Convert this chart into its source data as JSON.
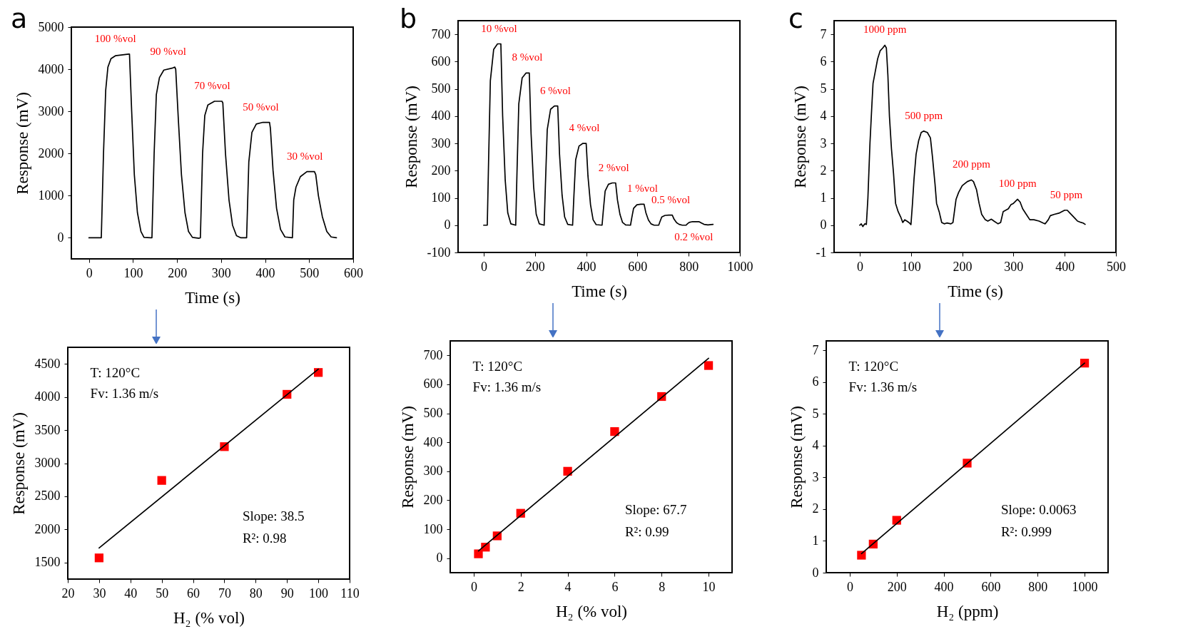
{
  "chart_data": [
    {
      "type": "line",
      "title": "a",
      "xlabel": "Time (s)",
      "ylabel": "Response (mV)",
      "color": "#000000",
      "xlim": [
        -40,
        600
      ],
      "xticks": [
        0,
        100,
        200,
        300,
        400,
        500,
        600
      ],
      "ylim": [
        -500,
        5000
      ],
      "yticks": [
        0,
        1000,
        2000,
        3000,
        4000,
        5000
      ],
      "x": [
        0,
        28,
        33,
        38,
        43,
        50,
        60,
        90,
        92,
        97,
        103,
        110,
        118,
        125,
        140,
        143,
        148,
        153,
        160,
        170,
        190,
        195,
        197,
        203,
        210,
        218,
        226,
        235,
        250,
        253,
        258,
        263,
        270,
        285,
        302,
        304,
        310,
        318,
        326,
        335,
        345,
        358,
        363,
        370,
        380,
        395,
        410,
        412,
        418,
        426,
        435,
        445,
        462,
        465,
        470,
        480,
        495,
        512,
        515,
        521,
        530,
        540,
        550,
        562
      ],
      "values": [
        0,
        0,
        2000,
        3500,
        4050,
        4250,
        4320,
        4360,
        4360,
        3000,
        1500,
        600,
        150,
        10,
        0,
        0,
        2000,
        3400,
        3800,
        3980,
        4030,
        4050,
        4000,
        2800,
        1500,
        600,
        150,
        10,
        -10,
        0,
        2000,
        2900,
        3150,
        3240,
        3240,
        3200,
        2000,
        900,
        300,
        50,
        0,
        0,
        1800,
        2500,
        2700,
        2740,
        2740,
        2600,
        1600,
        700,
        200,
        20,
        0,
        900,
        1200,
        1450,
        1570,
        1570,
        1500,
        1000,
        500,
        150,
        20,
        0
      ],
      "annotations": [
        {
          "text": "100 %vol",
          "x": 60,
          "y": 4360
        },
        {
          "text": "90 %vol",
          "x": 180,
          "y": 4050
        },
        {
          "text": "70 %vol",
          "x": 280,
          "y": 3240
        },
        {
          "text": "50 %vol",
          "x": 390,
          "y": 2740
        },
        {
          "text": "30 %vol",
          "x": 490,
          "y": 1570
        }
      ]
    },
    {
      "type": "line",
      "title": "b",
      "xlabel": "Time (s)",
      "ylabel": "Response (mV)",
      "color": "#000000",
      "xlim": [
        -100,
        1000
      ],
      "xticks": [
        0,
        200,
        400,
        600,
        800,
        1000
      ],
      "ylim": [
        -100,
        750
      ],
      "yticks": [
        -100,
        0,
        100,
        200,
        300,
        400,
        500,
        600,
        700
      ],
      "x": [
        0,
        14,
        19,
        26,
        39,
        54,
        67,
        74,
        84,
        94,
        106,
        125,
        130,
        137,
        150,
        165,
        178,
        185,
        195,
        205,
        217,
        236,
        241,
        248,
        261,
        276,
        289,
        296,
        306,
        316,
        328,
        347,
        352,
        359,
        372,
        387,
        400,
        407,
        417,
        427,
        439,
        462,
        467,
        474,
        487,
        502,
        515,
        522,
        532,
        542,
        554,
        573,
        578,
        585,
        598,
        613,
        626,
        633,
        643,
        653,
        665,
        683,
        688,
        695,
        708,
        723,
        736,
        743,
        753,
        763,
        775,
        790,
        795,
        802,
        815,
        840,
        850,
        860,
        875,
        895
      ],
      "values": [
        0,
        0,
        230,
        530,
        645,
        665,
        665,
        400,
        165,
        45,
        5,
        0,
        195,
        445,
        540,
        558,
        558,
        335,
        140,
        40,
        5,
        0,
        150,
        350,
        425,
        437,
        437,
        260,
        110,
        30,
        3,
        0,
        105,
        240,
        290,
        300,
        300,
        180,
        75,
        20,
        2,
        0,
        55,
        125,
        150,
        155,
        155,
        93,
        39,
        10,
        1,
        0,
        27,
        62,
        75,
        77,
        77,
        46,
        19,
        5,
        0,
        0,
        13,
        30,
        36,
        37,
        37,
        22,
        9,
        3,
        0,
        0,
        5,
        10,
        13,
        13,
        8,
        3,
        1,
        3
      ],
      "annotations": [
        {
          "text": "10 %vol",
          "x": 60,
          "y": 665
        },
        {
          "text": "8 %vol",
          "x": 170,
          "y": 558
        },
        {
          "text": "6 %vol",
          "x": 280,
          "y": 437
        },
        {
          "text": "4 %vol",
          "x": 393,
          "y": 300
        },
        {
          "text": "2 %vol",
          "x": 508,
          "y": 155
        },
        {
          "text": "1 %vol",
          "x": 620,
          "y": 77
        },
        {
          "text": "0.5 %vol",
          "x": 730,
          "y": 37
        },
        {
          "text": "0.2 %vol",
          "x": 820,
          "y": 13
        }
      ]
    },
    {
      "type": "line",
      "title": "c",
      "xlabel": "Time (s)",
      "ylabel": "Response (mV)",
      "color": "#000000",
      "xlim": [
        -50,
        500
      ],
      "xticks": [
        0,
        100,
        200,
        300,
        400,
        500
      ],
      "ylim": [
        -1,
        7.5
      ],
      "yticks": [
        -1,
        0,
        1,
        2,
        3,
        4,
        5,
        6,
        7
      ],
      "x": [
        0,
        3,
        6,
        10,
        13,
        16,
        20,
        24,
        26,
        30,
        35,
        40,
        45,
        49,
        52,
        55,
        58,
        62,
        66,
        70,
        75,
        80,
        84,
        88,
        92,
        96,
        100,
        103,
        106,
        110,
        115,
        120,
        125,
        132,
        138,
        142,
        147,
        150,
        155,
        160,
        165,
        170,
        178,
        182,
        188,
        193,
        200,
        210,
        218,
        222,
        228,
        233,
        238,
        245,
        250,
        257,
        262,
        270,
        275,
        280,
        285,
        290,
        295,
        300,
        308,
        313,
        318,
        325,
        332,
        340,
        350,
        358,
        362,
        368,
        372,
        380,
        390,
        400,
        405,
        410,
        415,
        420,
        425,
        432,
        436,
        440
      ],
      "values": [
        0,
        0.05,
        -0.05,
        0.05,
        0.03,
        1.0,
        3.0,
        4.5,
        5.2,
        5.6,
        6.1,
        6.4,
        6.5,
        6.6,
        6.5,
        5.5,
        4.0,
        2.8,
        1.9,
        0.8,
        0.5,
        0.3,
        0.1,
        0.2,
        0.15,
        0.1,
        0.02,
        0.8,
        1.7,
        2.6,
        3.1,
        3.4,
        3.45,
        3.4,
        3.2,
        2.5,
        1.5,
        0.8,
        0.5,
        0.1,
        0.05,
        0.08,
        0.05,
        0.1,
        0.95,
        1.2,
        1.45,
        1.6,
        1.66,
        1.6,
        1.3,
        0.8,
        0.4,
        0.2,
        0.15,
        0.22,
        0.15,
        0.05,
        0.1,
        0.5,
        0.55,
        0.6,
        0.75,
        0.8,
        0.95,
        0.85,
        0.6,
        0.4,
        0.2,
        0.2,
        0.15,
        0.08,
        0.05,
        0.2,
        0.35,
        0.4,
        0.45,
        0.55,
        0.55,
        0.45,
        0.35,
        0.25,
        0.15,
        0.1,
        0.08,
        0.03
      ],
      "annotations": [
        {
          "text": "1000 ppm",
          "x": 49,
          "y": 6.6
        },
        {
          "text": "500 ppm",
          "x": 125,
          "y": 3.45
        },
        {
          "text": "200 ppm",
          "x": 218,
          "y": 1.66
        },
        {
          "text": "100 ppm",
          "x": 308,
          "y": 0.95
        },
        {
          "text": "50 ppm",
          "x": 403,
          "y": 0.55
        }
      ]
    },
    {
      "type": "scatter",
      "xlabel": "H₂ (% vol)",
      "ylabel": "Response (mV)",
      "xlim": [
        20,
        110
      ],
      "xticks": [
        20,
        30,
        40,
        50,
        60,
        70,
        80,
        90,
        100,
        110
      ],
      "ylim": [
        1250,
        4750
      ],
      "yticks": [
        1500,
        2000,
        2500,
        3000,
        3500,
        4000,
        4500
      ],
      "x": [
        30,
        50,
        70,
        90,
        100
      ],
      "series": [
        {
          "marker": "square",
          "color": "#ff0000",
          "values": [
            1570,
            2740,
            3250,
            4040,
            4370
          ]
        },
        {
          "type": "line",
          "color": "#000000",
          "x": [
            30,
            100
          ],
          "values": [
            1720,
            4420
          ]
        }
      ],
      "annotations": [
        "T: 120°C",
        "Fv: 1.36 m/s",
        "Slope: 38.5",
        "R²: 0.98"
      ]
    },
    {
      "type": "scatter",
      "xlabel": "H₂ (% vol)",
      "ylabel": "Response (mV)",
      "xlim": [
        -1,
        11
      ],
      "xticks": [
        0,
        2,
        4,
        6,
        8,
        10
      ],
      "ylim": [
        -50,
        750
      ],
      "yticks": [
        0,
        100,
        200,
        300,
        400,
        500,
        600,
        700
      ],
      "x": [
        0.2,
        0.5,
        1,
        2,
        4,
        6,
        8,
        10
      ],
      "series": [
        {
          "marker": "square",
          "color": "#ff0000",
          "values": [
            15,
            38,
            77,
            155,
            300,
            437,
            558,
            665
          ]
        },
        {
          "type": "line",
          "color": "#000000",
          "x": [
            0.2,
            10
          ],
          "values": [
            25,
            690
          ]
        }
      ],
      "annotations": [
        "T: 120°C",
        "Fv: 1.36 m/s",
        "Slope: 67.7",
        "R²: 0.99"
      ]
    },
    {
      "type": "scatter",
      "xlabel": "H₂ (ppm)",
      "ylabel": "Response (mV)",
      "xlim": [
        -100,
        1100
      ],
      "xticks": [
        0,
        200,
        400,
        600,
        800,
        1000
      ],
      "ylim": [
        0,
        7.3
      ],
      "yticks": [
        0,
        1,
        2,
        3,
        4,
        5,
        6,
        7
      ],
      "x": [
        50,
        100,
        200,
        500,
        1000
      ],
      "series": [
        {
          "marker": "square",
          "color": "#ff0000",
          "values": [
            0.55,
            0.9,
            1.65,
            3.45,
            6.6
          ]
        },
        {
          "type": "line",
          "color": "#000000",
          "x": [
            50,
            1000
          ],
          "values": [
            0.6,
            6.6
          ]
        }
      ],
      "annotations": [
        "T: 120°C",
        "Fv: 1.36 m/s",
        "Slope: 0.0063",
        "R²: 0.999"
      ]
    }
  ]
}
